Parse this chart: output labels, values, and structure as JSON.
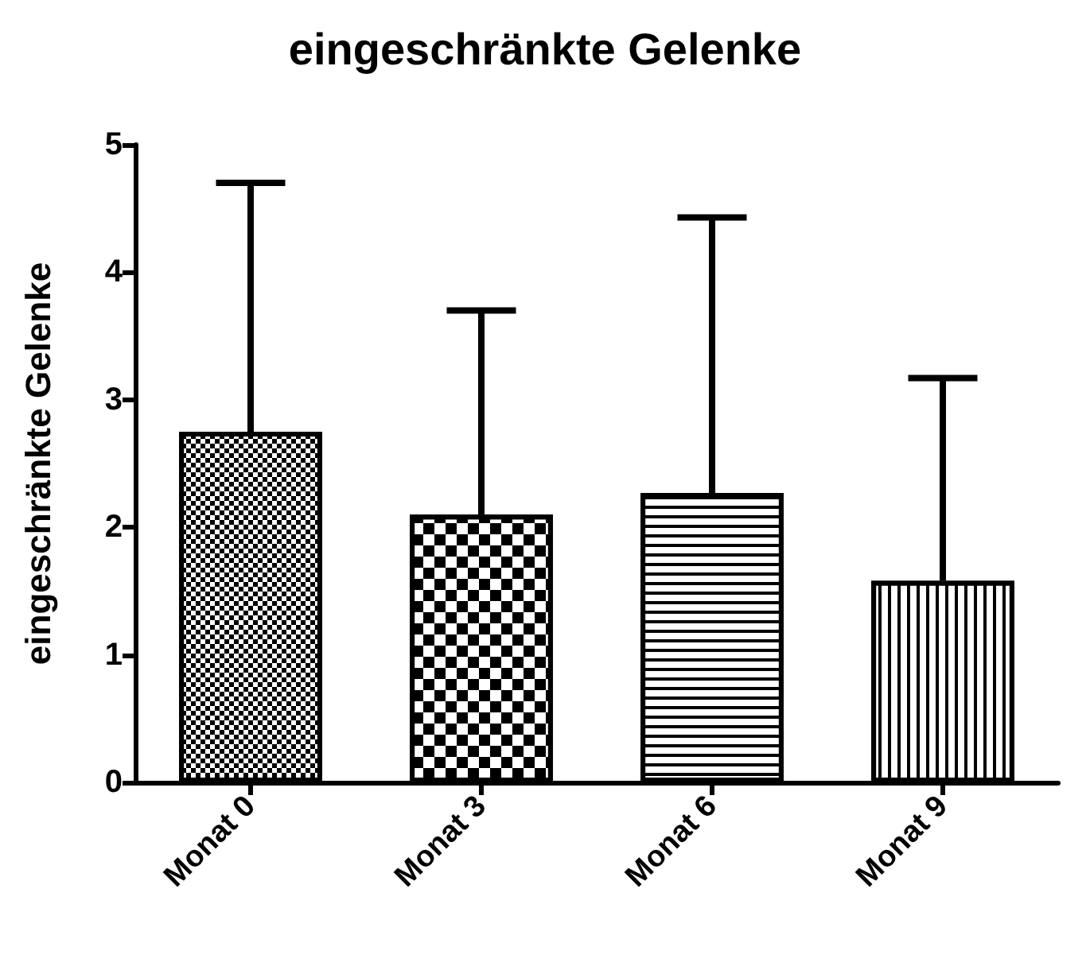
{
  "chart_data": {
    "type": "bar",
    "title": "eingeschränkte Gelenke",
    "ylabel": "eingeschränkte Gelenke",
    "categories": [
      "Monat 0",
      "Monat 3",
      "Monat 6",
      "Monat 9"
    ],
    "values": [
      2.75,
      2.1,
      2.27,
      1.58
    ],
    "errors": [
      [
        2.75,
        4.7
      ],
      [
        2.1,
        3.7
      ],
      [
        2.27,
        4.43
      ],
      [
        1.58,
        3.17
      ]
    ],
    "color": "#ffffff",
    "ylim": [
      0,
      5
    ],
    "yticks": [
      0,
      1,
      2,
      3,
      4,
      5
    ],
    "grid": false
  }
}
